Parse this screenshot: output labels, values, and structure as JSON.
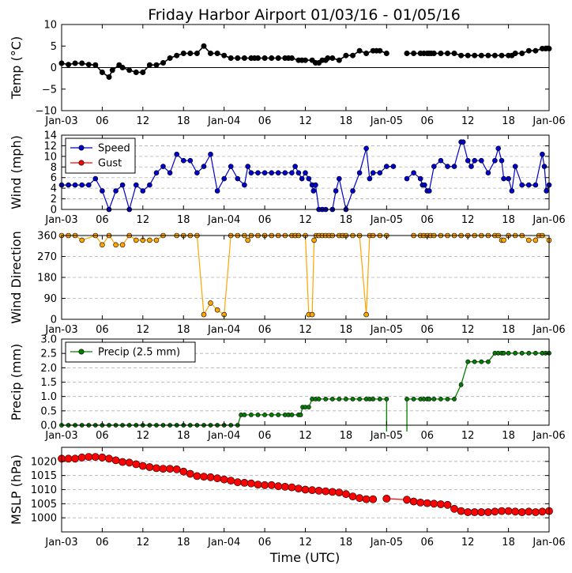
{
  "chart_data": {
    "type": "line",
    "title": "Friday Harbor Airport 01/03/16 - 01/05/16",
    "xlabel": "Time (UTC)",
    "x_ticks": [
      "Jan-03",
      "06",
      "12",
      "18",
      "Jan-04",
      "06",
      "12",
      "18",
      "Jan-05",
      "06",
      "12",
      "18",
      "Jan-06"
    ],
    "xlim_hours": [
      0,
      72
    ],
    "panels": [
      {
        "id": "temp",
        "ylabel": "Temp (°C)",
        "ylim": [
          -10,
          10
        ],
        "yticks": [
          -10,
          -5,
          0,
          5,
          10
        ],
        "ytick_labels": [
          "−10",
          "−5",
          "0",
          "5",
          "10"
        ],
        "zero_line": true,
        "grid": false,
        "series": [
          {
            "name": "Temp",
            "color": "#000000",
            "x": [
              0.0,
              1.0,
              2.0,
              3.0,
              4.0,
              5.0,
              6.0,
              7.0,
              7.5,
              8.5,
              9.0,
              10.0,
              11.0,
              12.0,
              13.0,
              14.0,
              15.0,
              16.0,
              17.0,
              18.0,
              19.0,
              20.0,
              21.0,
              22.0,
              23.0,
              24.0,
              25.0,
              26.0,
              27.0,
              28.0,
              28.5,
              29.0,
              30.0,
              31.0,
              32.0,
              33.0,
              33.5,
              34.0,
              35.0,
              35.5,
              36.0,
              37.0,
              37.5,
              38.0,
              38.5,
              39.0,
              39.3,
              40.0,
              41.0,
              42.0,
              43.0,
              44.0,
              45.0,
              46.0,
              46.5,
              47.0,
              48.0,
              49.0,
              51.0,
              52.0,
              53.0,
              53.5,
              54.0,
              54.3,
              54.6,
              55.0,
              56.0,
              57.0,
              58.0,
              59.0,
              60.0,
              61.0,
              62.0,
              63.0,
              64.0,
              65.0,
              66.0,
              66.5,
              67.0,
              68.0,
              69.0,
              70.0,
              71.0,
              71.5,
              72.0
            ],
            "y": [
              1.0,
              0.7,
              1.0,
              1.0,
              0.7,
              0.6,
              -1.1,
              -2.2,
              -0.6,
              0.6,
              0.0,
              -0.6,
              -1.1,
              -1.1,
              0.6,
              0.6,
              1.1,
              2.2,
              2.8,
              3.3,
              3.3,
              3.3,
              5.0,
              3.3,
              3.3,
              2.8,
              2.2,
              2.2,
              2.2,
              2.2,
              2.2,
              2.2,
              2.2,
              2.2,
              2.2,
              2.2,
              2.2,
              2.2,
              1.7,
              1.7,
              1.7,
              1.7,
              1.1,
              1.1,
              1.7,
              1.7,
              2.2,
              2.2,
              1.7,
              2.8,
              2.8,
              3.9,
              3.3,
              3.9,
              3.9,
              3.9,
              3.3,
              null,
              3.3,
              3.3,
              3.3,
              3.3,
              3.3,
              3.3,
              3.3,
              3.3,
              3.3,
              3.3,
              3.3,
              2.8,
              2.8,
              2.8,
              2.8,
              2.8,
              2.8,
              2.8,
              2.8,
              2.8,
              3.3,
              3.3,
              3.9,
              3.9,
              4.4,
              4.4,
              4.4
            ]
          }
        ]
      },
      {
        "id": "wind",
        "ylabel": "Wind (mph)",
        "ylim": [
          0,
          14
        ],
        "yticks": [
          0,
          2,
          4,
          6,
          8,
          10,
          12,
          14
        ],
        "ytick_labels": [
          "0",
          "2",
          "4",
          "6",
          "8",
          "10",
          "12",
          "14"
        ],
        "grid": true,
        "legend": {
          "placement": "upper-left",
          "entries": [
            {
              "label": "Speed",
              "color": "#0000cc"
            },
            {
              "label": "Gust",
              "color": "#ff0000"
            }
          ]
        },
        "series": [
          {
            "name": "Speed",
            "color": "#0000cc",
            "x": [
              0.0,
              1.0,
              2.0,
              3.0,
              4.0,
              5.0,
              6.0,
              7.0,
              8.0,
              9.0,
              10.0,
              11.0,
              12.0,
              13.0,
              14.0,
              15.0,
              16.0,
              17.0,
              18.0,
              19.0,
              20.0,
              21.0,
              22.0,
              23.0,
              24.0,
              25.0,
              26.0,
              27.0,
              27.5,
              28.0,
              29.0,
              30.0,
              31.0,
              32.0,
              33.0,
              34.0,
              34.5,
              35.0,
              35.5,
              36.0,
              36.5,
              37.0,
              37.2,
              37.5,
              38.0,
              38.5,
              39.0,
              40.0,
              40.5,
              41.0,
              42.0,
              43.0,
              44.0,
              45.0,
              45.5,
              46.0,
              47.0,
              48.0,
              49.0,
              51.0,
              52.0,
              53.0,
              53.3,
              53.6,
              54.0,
              54.3,
              55.0,
              56.0,
              57.0,
              58.0,
              59.0,
              59.3,
              60.0,
              60.5,
              61.0,
              62.0,
              63.0,
              64.0,
              64.5,
              65.0,
              65.3,
              66.0,
              66.5,
              67.0,
              68.0,
              69.0,
              70.0,
              71.0,
              71.3,
              71.6,
              72.0
            ],
            "y": [
              4.6,
              4.6,
              4.6,
              4.6,
              4.6,
              5.8,
              3.5,
              0.0,
              3.5,
              4.6,
              0.0,
              4.6,
              3.5,
              4.6,
              6.9,
              8.1,
              6.9,
              10.4,
              9.2,
              9.2,
              6.9,
              8.1,
              10.4,
              3.5,
              5.8,
              8.1,
              5.8,
              4.6,
              8.1,
              6.9,
              6.9,
              6.9,
              6.9,
              6.9,
              6.9,
              6.9,
              8.1,
              6.9,
              5.8,
              6.9,
              5.8,
              4.6,
              3.5,
              4.6,
              0.0,
              0.0,
              0.0,
              0.0,
              3.5,
              5.8,
              0.0,
              3.5,
              6.9,
              11.5,
              5.8,
              6.9,
              6.9,
              8.1,
              8.1,
              5.8,
              6.9,
              5.8,
              4.6,
              4.6,
              3.5,
              3.5,
              8.1,
              9.2,
              8.1,
              8.1,
              12.7,
              12.7,
              9.2,
              8.1,
              9.2,
              9.2,
              6.9,
              9.2,
              11.5,
              9.2,
              5.8,
              5.8,
              3.5,
              8.1,
              4.6,
              4.6,
              4.6,
              10.4,
              8.1,
              3.5,
              4.6
            ],
            "gaps_before_x": [
              51.0
            ]
          },
          {
            "name": "Gust",
            "color": "#ff0000",
            "x": [],
            "y": []
          }
        ]
      },
      {
        "id": "dir",
        "ylabel": "Wind Direction",
        "ylim": [
          0,
          360
        ],
        "yticks": [
          0,
          90,
          180,
          270,
          360
        ],
        "ytick_labels": [
          "0",
          "90",
          "180",
          "270",
          "360"
        ],
        "grid": true,
        "series": [
          {
            "name": "Direction",
            "color": "#ffa500",
            "x": [
              0,
              1,
              2,
              3,
              5,
              6,
              7,
              8,
              9,
              10,
              11,
              12,
              13,
              14,
              15,
              17,
              18,
              19,
              20,
              21,
              22,
              23,
              24,
              25,
              26,
              27,
              27.5,
              28,
              29,
              30,
              31,
              32,
              33,
              34,
              34.5,
              35,
              36,
              36.5,
              37,
              37.3,
              37.6,
              38,
              38.5,
              39,
              39.5,
              40,
              41,
              41.5,
              42,
              43,
              44,
              45,
              45.5,
              46,
              47,
              48,
              52,
              53,
              53.5,
              54,
              54.5,
              55,
              56,
              57,
              58,
              59,
              60,
              61,
              62,
              63,
              64,
              64.5,
              65,
              65.3,
              66,
              67,
              68,
              69,
              70,
              70.5,
              71,
              72
            ],
            "y": [
              360,
              360,
              360,
              340,
              360,
              320,
              360,
              320,
              320,
              360,
              340,
              340,
              340,
              340,
              360,
              360,
              360,
              360,
              360,
              20,
              70,
              40,
              20,
              360,
              360,
              360,
              340,
              360,
              360,
              360,
              360,
              360,
              360,
              360,
              360,
              360,
              360,
              20,
              20,
              340,
              360,
              360,
              360,
              360,
              360,
              360,
              360,
              360,
              360,
              360,
              360,
              20,
              360,
              360,
              360,
              360,
              360,
              360,
              360,
              360,
              360,
              360,
              360,
              360,
              360,
              360,
              360,
              360,
              360,
              360,
              360,
              360,
              340,
              340,
              360,
              360,
              360,
              340,
              340,
              360,
              360,
              340
            ],
            "gaps_before_x": [
              52
            ]
          }
        ]
      },
      {
        "id": "precip",
        "ylabel": "Precip (mm)",
        "ylim": [
          0,
          3.0
        ],
        "yticks": [
          0.0,
          0.5,
          1.0,
          1.5,
          2.0,
          2.5,
          3.0
        ],
        "ytick_labels": [
          "0.0",
          "0.5",
          "1.0",
          "1.5",
          "2.0",
          "2.5",
          "3.0"
        ],
        "grid": true,
        "legend": {
          "placement": "upper-left",
          "entries": [
            {
              "label": "Precip (2.5 mm)",
              "color": "#007f00"
            }
          ]
        },
        "series": [
          {
            "name": "Precip (2.5 mm)",
            "color": "#007f00",
            "x": [
              0,
              1,
              2,
              3,
              4,
              5,
              6,
              7,
              8,
              9,
              10,
              11,
              12,
              13,
              14,
              15,
              16,
              17,
              18,
              19,
              20,
              21,
              22,
              23,
              24,
              25,
              26,
              26.5,
              27,
              28,
              29,
              30,
              31,
              32,
              33,
              33.5,
              34,
              35,
              35.3,
              35.6,
              36,
              36.5,
              37,
              37.5,
              38,
              39,
              40,
              41,
              42,
              43,
              44,
              45,
              45.5,
              46,
              47,
              48,
              51,
              52,
              53,
              53.5,
              54,
              54.3,
              55,
              56,
              57,
              58,
              59,
              60,
              61,
              62,
              63,
              64,
              64.5,
              65,
              65.3,
              66,
              67,
              68,
              69,
              70,
              71,
              71.5,
              72
            ],
            "y": [
              0,
              0,
              0,
              0,
              0,
              0,
              0,
              0,
              0,
              0,
              0,
              0,
              0,
              0,
              0,
              0,
              0,
              0,
              0,
              0,
              0,
              0,
              0,
              0,
              0,
              0,
              0,
              0.36,
              0.36,
              0.36,
              0.36,
              0.36,
              0.36,
              0.36,
              0.36,
              0.36,
              0.36,
              0.36,
              0.36,
              0.63,
              0.63,
              0.63,
              0.91,
              0.91,
              0.91,
              0.91,
              0.91,
              0.91,
              0.91,
              0.91,
              0.91,
              0.91,
              0.91,
              0.91,
              0.91,
              0.91,
              0.91,
              0.91,
              0.91,
              0.91,
              0.91,
              0.91,
              0.91,
              0.91,
              0.91,
              0.91,
              1.41,
              2.21,
              2.21,
              2.21,
              2.21,
              2.51,
              2.51,
              2.51,
              2.51,
              2.51,
              2.51,
              2.51,
              2.51,
              2.51,
              2.51,
              2.51,
              2.51
            ],
            "gap_between_x": [
              48,
              51
            ]
          }
        ]
      },
      {
        "id": "mslp",
        "ylabel": "MSLP (hPa)",
        "ylim": [
          995,
          1025
        ],
        "yticks": [
          1000,
          1005,
          1010,
          1015,
          1020
        ],
        "ytick_labels": [
          "1000",
          "1005",
          "1010",
          "1015",
          "1020"
        ],
        "grid": true,
        "series": [
          {
            "name": "MSLP",
            "color": "#ff0000",
            "x": [
              0,
              1,
              2,
              3,
              4,
              5,
              6,
              7,
              8,
              9,
              10,
              11,
              12,
              13,
              14,
              15,
              16,
              17,
              18,
              19,
              20,
              21,
              22,
              23,
              24,
              25,
              26,
              27,
              28,
              29,
              30,
              31,
              32,
              33,
              34,
              35,
              36,
              37,
              38,
              39,
              40,
              41,
              42,
              43,
              44,
              45,
              46,
              47,
              48,
              51,
              52,
              53,
              54,
              55,
              56,
              57,
              58,
              59,
              60,
              61,
              62,
              63,
              64,
              65,
              66,
              67,
              68,
              69,
              70,
              71,
              72
            ],
            "y": [
              1021.0,
              1021.0,
              1021.0,
              1021.4,
              1021.6,
              1021.6,
              1021.4,
              1021.0,
              1020.4,
              1019.8,
              1019.6,
              1019.0,
              1018.4,
              1018.0,
              1017.6,
              1017.4,
              1017.4,
              1017.2,
              1016.4,
              1015.6,
              1014.8,
              1014.6,
              1014.4,
              1014.0,
              1013.6,
              1013.2,
              1012.6,
              1012.4,
              1012.2,
              1011.8,
              1011.6,
              1011.6,
              1011.2,
              1011.0,
              1010.8,
              1010.4,
              1010.0,
              1009.8,
              1009.6,
              1009.4,
              1009.2,
              1009.0,
              1008.4,
              1007.6,
              1007.0,
              1006.6,
              1006.6,
              null,
              1006.8,
              1006.4,
              1005.8,
              1005.4,
              1005.2,
              1005.0,
              1004.8,
              1004.6,
              1003.2,
              1002.4,
              1002.0,
              1002.0,
              1002.0,
              1002.0,
              1002.2,
              1002.4,
              1002.4,
              1002.2,
              1002.0,
              1002.2,
              1002.0,
              1002.2,
              1002.4
            ]
          }
        ]
      }
    ]
  }
}
